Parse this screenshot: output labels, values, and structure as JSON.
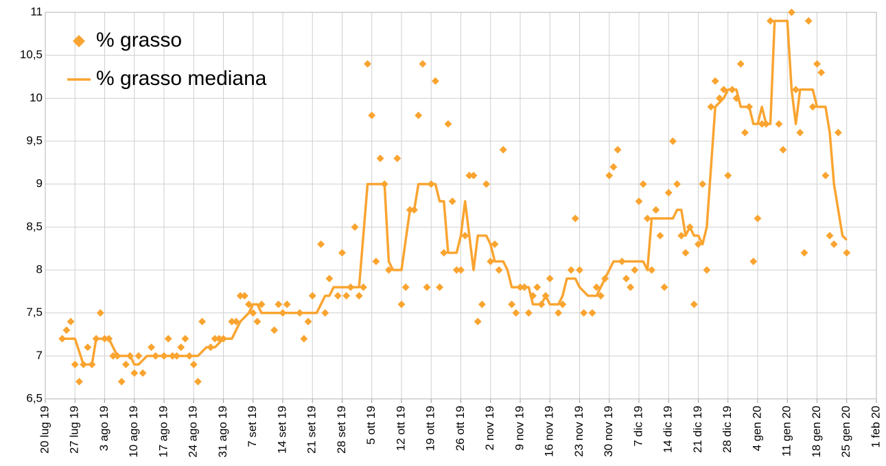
{
  "chart_data": {
    "type": "scatter",
    "xlim": [
      "2019-07-20",
      "2020-02-01"
    ],
    "xticks": [
      {
        "value": "2019-07-20",
        "label": "20 lug 19"
      },
      {
        "value": "2019-07-27",
        "label": "27 lug 19"
      },
      {
        "value": "2019-08-03",
        "label": "3 ago 19"
      },
      {
        "value": "2019-08-10",
        "label": "10 ago 19"
      },
      {
        "value": "2019-08-17",
        "label": "17 ago 19"
      },
      {
        "value": "2019-08-24",
        "label": "24 ago 19"
      },
      {
        "value": "2019-08-31",
        "label": "31 ago 19"
      },
      {
        "value": "2019-09-07",
        "label": "7 set 19"
      },
      {
        "value": "2019-09-14",
        "label": "14 set 19"
      },
      {
        "value": "2019-09-21",
        "label": "21 set 19"
      },
      {
        "value": "2019-09-28",
        "label": "28 set 19"
      },
      {
        "value": "2019-10-05",
        "label": "5 ott 19"
      },
      {
        "value": "2019-10-12",
        "label": "12 ott 19"
      },
      {
        "value": "2019-10-19",
        "label": "19 ott 19"
      },
      {
        "value": "2019-10-26",
        "label": "26 ott 19"
      },
      {
        "value": "2019-11-02",
        "label": "2 nov 19"
      },
      {
        "value": "2019-11-09",
        "label": "9 nov 19"
      },
      {
        "value": "2019-11-16",
        "label": "16 nov 19"
      },
      {
        "value": "2019-11-23",
        "label": "23 nov 19"
      },
      {
        "value": "2019-11-30",
        "label": "30 nov 19"
      },
      {
        "value": "2019-12-07",
        "label": "7 dic 19"
      },
      {
        "value": "2019-12-14",
        "label": "14 dic 19"
      },
      {
        "value": "2019-12-21",
        "label": "21 dic 19"
      },
      {
        "value": "2019-12-28",
        "label": "28 dic 19"
      },
      {
        "value": "2020-01-04",
        "label": "4 gen 20"
      },
      {
        "value": "2020-01-11",
        "label": "11 gen 20"
      },
      {
        "value": "2020-01-18",
        "label": "18 gen 20"
      },
      {
        "value": "2020-01-25",
        "label": "25 gen 20"
      },
      {
        "value": "2020-02-01",
        "label": "1 feb 20"
      }
    ],
    "ylim": [
      6.5,
      11
    ],
    "yticks": [
      {
        "value": 6.5,
        "label": "6,5"
      },
      7,
      {
        "value": 7.5,
        "label": "7,5"
      },
      8,
      {
        "value": 8.5,
        "label": "8,5"
      },
      9,
      {
        "value": 9.5,
        "label": "9,5"
      },
      10,
      {
        "value": 10.5,
        "label": "10,5"
      },
      11
    ],
    "grid": true,
    "legend": "top-left",
    "series": [
      {
        "name": "% grasso",
        "type": "scatter",
        "color": "#f9a430",
        "x": [
          "2019-07-24",
          "2019-07-25",
          "2019-07-26",
          "2019-07-27",
          "2019-07-28",
          "2019-07-29",
          "2019-07-30",
          "2019-07-31",
          "2019-08-01",
          "2019-08-02",
          "2019-08-03",
          "2019-08-04",
          "2019-08-05",
          "2019-08-06",
          "2019-08-07",
          "2019-08-08",
          "2019-08-09",
          "2019-08-10",
          "2019-08-11",
          "2019-08-12",
          "2019-08-14",
          "2019-08-15",
          "2019-08-17",
          "2019-08-18",
          "2019-08-19",
          "2019-08-20",
          "2019-08-21",
          "2019-08-22",
          "2019-08-23",
          "2019-08-24",
          "2019-08-25",
          "2019-08-26",
          "2019-08-28",
          "2019-08-29",
          "2019-08-30",
          "2019-08-31",
          "2019-09-02",
          "2019-09-03",
          "2019-09-04",
          "2019-09-05",
          "2019-09-06",
          "2019-09-07",
          "2019-09-08",
          "2019-09-09",
          "2019-09-12",
          "2019-09-13",
          "2019-09-14",
          "2019-09-15",
          "2019-09-18",
          "2019-09-19",
          "2019-09-20",
          "2019-09-21",
          "2019-09-23",
          "2019-09-24",
          "2019-09-25",
          "2019-09-27",
          "2019-09-28",
          "2019-09-29",
          "2019-09-30",
          "2019-10-01",
          "2019-10-02",
          "2019-10-03",
          "2019-10-04",
          "2019-10-05",
          "2019-10-06",
          "2019-10-07",
          "2019-10-08",
          "2019-10-09",
          "2019-10-11",
          "2019-10-12",
          "2019-10-13",
          "2019-10-14",
          "2019-10-15",
          "2019-10-16",
          "2019-10-17",
          "2019-10-18",
          "2019-10-19",
          "2019-10-20",
          "2019-10-21",
          "2019-10-22",
          "2019-10-23",
          "2019-10-24",
          "2019-10-25",
          "2019-10-26",
          "2019-10-27",
          "2019-10-28",
          "2019-10-29",
          "2019-10-30",
          "2019-10-31",
          "2019-11-01",
          "2019-11-02",
          "2019-11-03",
          "2019-11-04",
          "2019-11-05",
          "2019-11-07",
          "2019-11-08",
          "2019-11-09",
          "2019-11-10",
          "2019-11-11",
          "2019-11-12",
          "2019-11-13",
          "2019-11-14",
          "2019-11-15",
          "2019-11-16",
          "2019-11-18",
          "2019-11-19",
          "2019-11-21",
          "2019-11-22",
          "2019-11-23",
          "2019-11-24",
          "2019-11-26",
          "2019-11-27",
          "2019-11-28",
          "2019-11-29",
          "2019-11-30",
          "2019-12-01",
          "2019-12-02",
          "2019-12-03",
          "2019-12-04",
          "2019-12-05",
          "2019-12-06",
          "2019-12-07",
          "2019-12-08",
          "2019-12-09",
          "2019-12-10",
          "2019-12-11",
          "2019-12-12",
          "2019-12-13",
          "2019-12-14",
          "2019-12-15",
          "2019-12-16",
          "2019-12-17",
          "2019-12-18",
          "2019-12-19",
          "2019-12-20",
          "2019-12-21",
          "2019-12-22",
          "2019-12-23",
          "2019-12-24",
          "2019-12-25",
          "2019-12-26",
          "2019-12-27",
          "2019-12-28",
          "2019-12-29",
          "2019-12-30",
          "2019-12-31",
          "2020-01-01",
          "2020-01-02",
          "2020-01-03",
          "2020-01-04",
          "2020-01-05",
          "2020-01-06",
          "2020-01-07",
          "2020-01-09",
          "2020-01-10",
          "2020-01-12",
          "2020-01-13",
          "2020-01-14",
          "2020-01-15",
          "2020-01-16",
          "2020-01-17",
          "2020-01-18",
          "2020-01-19",
          "2020-01-20",
          "2020-01-21",
          "2020-01-22",
          "2020-01-23",
          "2020-01-25"
        ],
        "values": [
          7.2,
          7.3,
          7.4,
          6.9,
          6.7,
          6.9,
          7.1,
          6.9,
          7.2,
          7.5,
          7.2,
          7.2,
          7.0,
          7.0,
          6.7,
          6.9,
          7.0,
          6.8,
          7.0,
          6.8,
          7.1,
          7.0,
          7.0,
          7.2,
          7.0,
          7.0,
          7.1,
          7.2,
          7.0,
          6.9,
          6.7,
          7.4,
          7.1,
          7.2,
          7.2,
          7.2,
          7.4,
          7.4,
          7.7,
          7.7,
          7.6,
          7.5,
          7.4,
          7.6,
          7.3,
          7.6,
          7.5,
          7.6,
          7.5,
          7.2,
          7.4,
          7.7,
          8.3,
          7.5,
          7.9,
          7.7,
          8.2,
          7.7,
          7.8,
          8.5,
          7.7,
          7.8,
          10.4,
          9.8,
          8.1,
          9.3,
          9.0,
          8.0,
          9.3,
          7.6,
          7.8,
          8.7,
          8.7,
          9.8,
          10.4,
          7.8,
          9.0,
          10.2,
          7.8,
          8.2,
          9.7,
          8.8,
          8.0,
          8.0,
          8.4,
          9.1,
          9.1,
          7.4,
          7.6,
          9.0,
          8.1,
          8.3,
          8.0,
          9.4,
          7.6,
          7.5,
          7.8,
          7.8,
          7.5,
          7.7,
          7.8,
          7.6,
          7.7,
          7.9,
          7.5,
          7.6,
          8.0,
          8.6,
          8.0,
          7.5,
          7.5,
          7.8,
          7.7,
          7.9,
          9.1,
          9.2,
          9.4,
          8.1,
          7.9,
          7.8,
          8.0,
          8.8,
          9.0,
          8.6,
          8.0,
          8.7,
          8.4,
          7.8,
          8.9,
          9.5,
          9.0,
          8.4,
          8.2,
          8.5,
          7.6,
          8.3,
          9.0,
          8.0,
          9.9,
          10.2,
          10.0,
          10.1,
          9.1,
          10.1,
          10.0,
          10.4,
          9.6,
          9.9,
          8.1,
          8.6,
          9.7,
          9.7,
          10.9,
          9.7,
          9.4,
          11.0,
          10.1,
          9.6,
          8.2,
          10.9,
          9.9,
          10.4,
          10.3,
          9.1,
          8.4,
          8.3,
          9.6,
          8.2
        ]
      },
      {
        "name": "% grasso mediana",
        "type": "line",
        "color": "#f9a430",
        "x": [
          "2019-07-24",
          "2019-07-27",
          "2019-07-29",
          "2019-07-31",
          "2019-08-01",
          "2019-08-04",
          "2019-08-06",
          "2019-08-09",
          "2019-08-10",
          "2019-08-11",
          "2019-08-13",
          "2019-08-25",
          "2019-08-27",
          "2019-08-29",
          "2019-08-31",
          "2019-09-02",
          "2019-09-04",
          "2019-09-06",
          "2019-09-07",
          "2019-09-08",
          "2019-09-09",
          "2019-09-22",
          "2019-09-24",
          "2019-09-25",
          "2019-09-26",
          "2019-10-02",
          "2019-10-03",
          "2019-10-04",
          "2019-10-08",
          "2019-10-09",
          "2019-10-10",
          "2019-10-12",
          "2019-10-14",
          "2019-10-15",
          "2019-10-16",
          "2019-10-20",
          "2019-10-21",
          "2019-10-22",
          "2019-10-23",
          "2019-10-25",
          "2019-10-26",
          "2019-10-27",
          "2019-10-28",
          "2019-10-29",
          "2019-10-30",
          "2019-11-01",
          "2019-11-02",
          "2019-11-03",
          "2019-11-05",
          "2019-11-06",
          "2019-11-07",
          "2019-11-11",
          "2019-11-12",
          "2019-11-14",
          "2019-11-15",
          "2019-11-16",
          "2019-11-18",
          "2019-11-19",
          "2019-11-20",
          "2019-11-22",
          "2019-11-23",
          "2019-11-25",
          "2019-11-27",
          "2019-11-28",
          "2019-11-29",
          "2019-12-01",
          "2019-12-08",
          "2019-12-09",
          "2019-12-10",
          "2019-12-15",
          "2019-12-16",
          "2019-12-17",
          "2019-12-18",
          "2019-12-19",
          "2019-12-20",
          "2019-12-21",
          "2019-12-22",
          "2019-12-23",
          "2019-12-25",
          "2019-12-27",
          "2019-12-28",
          "2019-12-30",
          "2019-12-31",
          "2020-01-02",
          "2020-01-03",
          "2020-01-04",
          "2020-01-05",
          "2020-01-06",
          "2020-01-07",
          "2020-01-08",
          "2020-01-11",
          "2020-01-12",
          "2020-01-13",
          "2020-01-14",
          "2020-01-17",
          "2020-01-18",
          "2020-01-20",
          "2020-01-21",
          "2020-01-22",
          "2020-01-24",
          "2020-01-25"
        ],
        "values": [
          7.2,
          7.2,
          6.9,
          6.9,
          7.2,
          7.2,
          7.0,
          7.0,
          6.9,
          6.9,
          7.0,
          7.0,
          7.1,
          7.1,
          7.2,
          7.2,
          7.4,
          7.5,
          7.6,
          7.6,
          7.5,
          7.5,
          7.7,
          7.7,
          7.8,
          7.8,
          8.4,
          9.0,
          9.0,
          8.1,
          8.0,
          8.0,
          8.7,
          8.7,
          9.0,
          9.0,
          8.8,
          8.8,
          8.2,
          8.2,
          8.4,
          8.8,
          8.4,
          8.0,
          8.4,
          8.4,
          8.3,
          8.1,
          8.1,
          8.0,
          7.8,
          7.8,
          7.6,
          7.6,
          7.7,
          7.6,
          7.6,
          7.7,
          7.9,
          7.9,
          7.8,
          7.7,
          7.7,
          7.8,
          7.9,
          8.1,
          8.1,
          8.0,
          8.6,
          8.6,
          8.7,
          8.7,
          8.4,
          8.5,
          8.4,
          8.4,
          8.3,
          8.5,
          9.9,
          10.0,
          10.1,
          10.1,
          9.9,
          9.9,
          9.7,
          9.7,
          9.9,
          9.7,
          9.7,
          10.9,
          10.9,
          10.1,
          9.7,
          10.1,
          10.1,
          9.9,
          9.9,
          9.6,
          9.0,
          8.4,
          8.35
        ]
      }
    ]
  }
}
